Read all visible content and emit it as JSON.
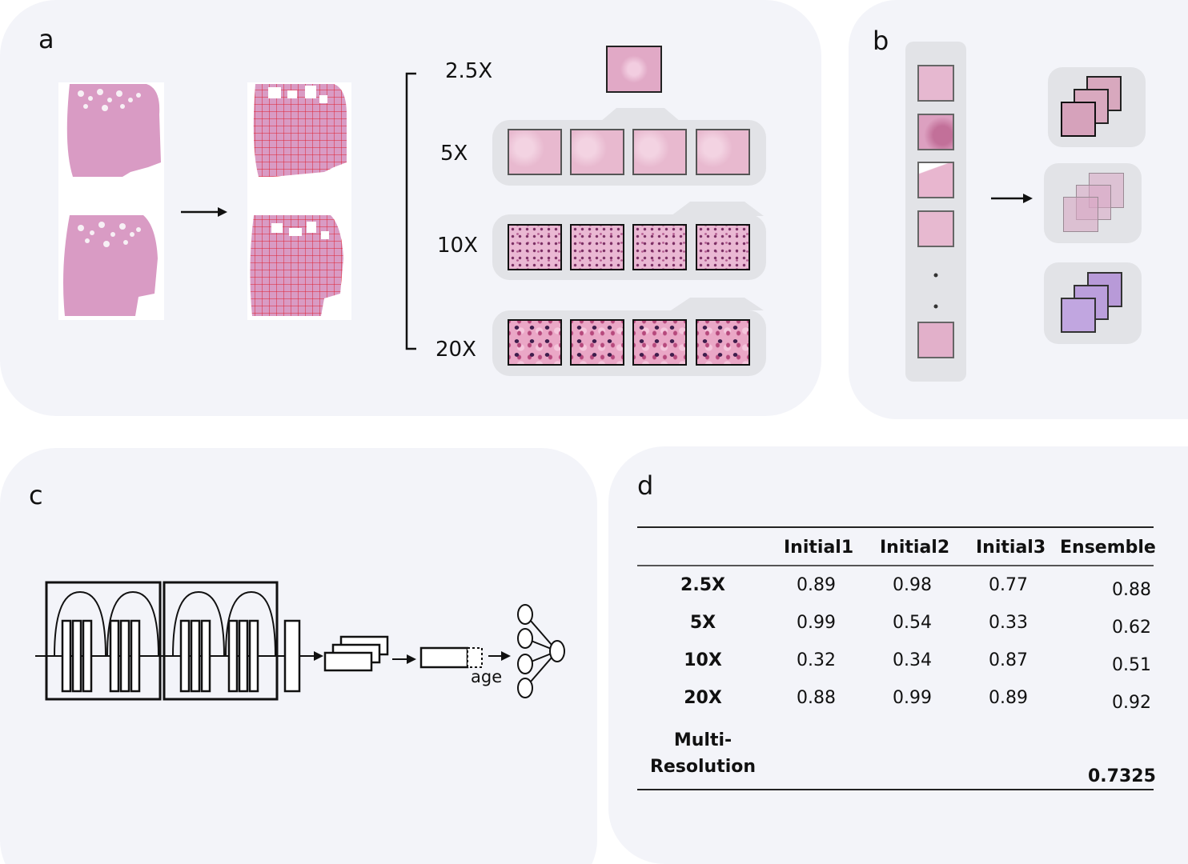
{
  "panels": {
    "a": {
      "label": "a",
      "magnifications": [
        "2.5X",
        "5X",
        "10X",
        "20X"
      ]
    },
    "b": {
      "label": "b"
    },
    "c": {
      "label": "c",
      "age_label": "age"
    },
    "d": {
      "label": "d"
    }
  },
  "table": {
    "columns": [
      "Initial1",
      "Initial2",
      "Initial3",
      "Ensemble"
    ],
    "rows": [
      {
        "label": "2.5X",
        "values": [
          "0.89",
          "0.98",
          "0.77",
          "0.88"
        ]
      },
      {
        "label": "5X",
        "values": [
          "0.99",
          "0.54",
          "0.33",
          "0.62"
        ]
      },
      {
        "label": "10X",
        "values": [
          "0.32",
          "0.34",
          "0.87",
          "0.51"
        ]
      },
      {
        "label": "20X",
        "values": [
          "0.88",
          "0.99",
          "0.89",
          "0.92"
        ]
      }
    ],
    "final_row": {
      "label_line1": "Multi-",
      "label_line2": "Resolution",
      "value": "0.7325"
    }
  },
  "colors": {
    "panel_bg": "#f3f4f9",
    "tile_bg": "#e2e3e7",
    "grid_red": "#e02030",
    "tissue_pink": "#d99bc4"
  }
}
